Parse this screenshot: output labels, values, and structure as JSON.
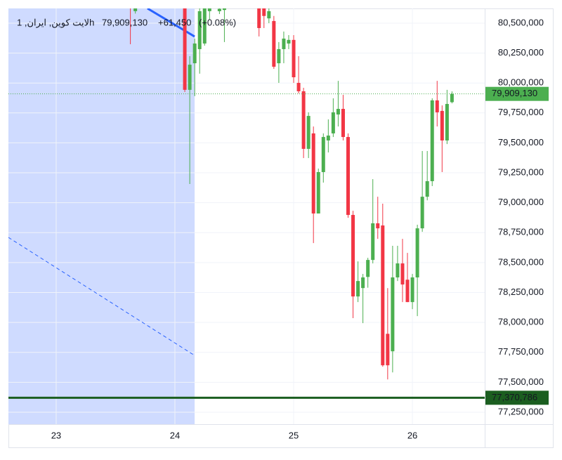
{
  "chart_data": {
    "type": "candlestick",
    "title": "لایت کوین, ایران, 1h",
    "last_price": {
      "value": 79909130,
      "label": "79,909,130"
    },
    "change": {
      "value": 61450,
      "label": "+61,450"
    },
    "change_percent": {
      "value": 0.08,
      "label": "(+0.08%)"
    },
    "up_color": "#4caf50",
    "down_color": "#f23645",
    "x": [
      23.625,
      23.6667,
      24.0833,
      24.125,
      24.1667,
      24.2083,
      24.25,
      24.2917,
      24.375,
      24.4167,
      24.7083,
      24.75,
      24.7917,
      24.8333,
      24.875,
      24.9167,
      24.9583,
      25,
      25.0417,
      25.0833,
      25.125,
      25.1667,
      25.2083,
      25.25,
      25.2917,
      25.3333,
      25.375,
      25.4167,
      25.4583,
      25.5,
      25.5417,
      25.5833,
      25.625,
      25.6667,
      25.7083,
      25.75,
      25.7917,
      25.8333,
      25.875,
      25.9167,
      25.9583,
      26,
      26.0417,
      26.0833,
      26.125,
      26.1667,
      26.2083,
      26.25,
      26.2917,
      26.3333
    ],
    "open": [
      80700000,
      80600000,
      80650000,
      79943000,
      80165000,
      80283000,
      80330000,
      80600000,
      80600000,
      80610000,
      80650000,
      80650000,
      80540000,
      80518000,
      80165000,
      80283000,
      80330000,
      80360000,
      80001000,
      79931000,
      79450000,
      79579000,
      78910000,
      79256000,
      79520000,
      79579000,
      79737000,
      79784000,
      79549000,
      78898000,
      78217000,
      78287000,
      78380000,
      78522000,
      78828000,
      78810000,
      77905000,
      77759000,
      78376000,
      78493000,
      78357000,
      78170000,
      78376000,
      78786000,
      79050000,
      79180000,
      79855000,
      79767000,
      79520000,
      79840000
    ],
    "high": [
      80750000,
      80680000,
      80700000,
      80224000,
      80371000,
      80650000,
      80700000,
      80700000,
      80650000,
      80660000,
      80700000,
      80700000,
      80640000,
      80560000,
      80342000,
      80430000,
      80400000,
      80400000,
      80224000,
      79960000,
      79755000,
      79637000,
      79285000,
      79579000,
      79696000,
      79872000,
      80018000,
      79901000,
      79579000,
      78933000,
      78510000,
      78405000,
      78540000,
      79197000,
      79050000,
      78992000,
      78287000,
      78640000,
      78640000,
      78698000,
      78581000,
      78405000,
      78816000,
      79432000,
      79432000,
      79872000,
      80018000,
      79813000,
      79943000,
      79930000
    ],
    "low": [
      80324000,
      80580000,
      79925000,
      79156000,
      79890000,
      80078000,
      80312000,
      80530000,
      80576000,
      80342000,
      80389000,
      80459000,
      80500000,
      80118000,
      80001000,
      80165000,
      80283000,
      80001000,
      79913000,
      79373000,
      79373000,
      78663000,
      78910000,
      79168000,
      79420000,
      79549000,
      79637000,
      79520000,
      78874000,
      78036000,
      78170000,
      77994000,
      78290000,
      78493000,
      78698000,
      77630000,
      77524000,
      77583000,
      78346000,
      78170000,
      78170000,
      78111000,
      78053000,
      78757000,
      79020000,
      79139000,
      79637000,
      79256000,
      79490000,
      79830000
    ],
    "close": [
      80640000,
      80650000,
      79943000,
      80153000,
      80330000,
      80600000,
      80650000,
      80640000,
      80620000,
      80640000,
      80459000,
      80560000,
      80600000,
      80136000,
      80283000,
      80371000,
      80360000,
      80048000,
      79931000,
      79450000,
      79725000,
      78910000,
      79256000,
      79549000,
      79561000,
      79755000,
      79784000,
      79549000,
      78898000,
      78217000,
      78346000,
      78376000,
      78522000,
      78828000,
      78786000,
      77642000,
      77642000,
      78376000,
      78493000,
      78317000,
      78170000,
      78376000,
      78786000,
      79050000,
      79180000,
      79855000,
      79755000,
      79520000,
      79825000,
      79909130
    ],
    "xlim": [
      22.598,
      26.609
    ],
    "xticks": [
      23,
      24,
      25,
      26
    ],
    "ylim": [
      77150000,
      80623000
    ],
    "yticks": [
      {
        "value": 77250000,
        "label": "77,250,000"
      },
      {
        "value": 77500000,
        "label": "77,500,000"
      },
      {
        "value": 77750000,
        "label": "77,750,000"
      },
      {
        "value": 78000000,
        "label": "78,000,000"
      },
      {
        "value": 78250000,
        "label": "78,250,000"
      },
      {
        "value": 78500000,
        "label": "78,500,000"
      },
      {
        "value": 78750000,
        "label": "78,750,000"
      },
      {
        "value": 79000000,
        "label": "79,000,000"
      },
      {
        "value": 79250000,
        "label": "79,250,000"
      },
      {
        "value": 79500000,
        "label": "79,500,000"
      },
      {
        "value": 79750000,
        "label": "79,750,000"
      },
      {
        "value": 80000000,
        "label": "80,000,000"
      },
      {
        "value": 80250000,
        "label": "80,250,000"
      },
      {
        "value": 80500000,
        "label": "80,500,000"
      }
    ],
    "grid": true,
    "shaded_region": {
      "x": [
        22.598,
        24.166
      ],
      "color": "#ccd9ff"
    },
    "trend_lines": [
      {
        "x": [
          23.769,
          24.166
        ],
        "y": [
          80623000,
          80388000
        ],
        "color": "#2962ff",
        "dashed": false
      },
      {
        "x": [
          22.598,
          24.166
        ],
        "y": [
          78710000,
          77724000
        ],
        "color": "#2962ff",
        "dashed": true
      }
    ],
    "level": {
      "value": 77370786,
      "label": "77,370,786",
      "color": "#1b5e20"
    }
  }
}
